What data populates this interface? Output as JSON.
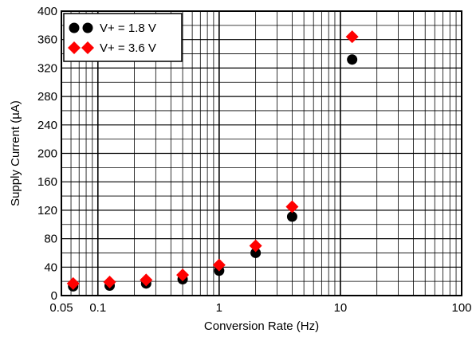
{
  "chart_data": {
    "type": "scatter",
    "title": "",
    "xlabel": "Conversion Rate (Hz)",
    "ylabel": "Supply Current (µA)",
    "xscale": "log",
    "xlim": [
      0.05,
      100
    ],
    "ylim": [
      0,
      400
    ],
    "x_ticks": [
      {
        "value": 0.05,
        "label": "0.05"
      },
      {
        "value": 0.1,
        "label": "0.1"
      },
      {
        "value": 1,
        "label": "1"
      },
      {
        "value": 10,
        "label": "10"
      },
      {
        "value": 100,
        "label": "100"
      }
    ],
    "y_ticks": [
      0,
      40,
      80,
      120,
      160,
      200,
      240,
      280,
      320,
      360,
      400
    ],
    "y_tick_labels": [
      "0",
      "40",
      "80",
      "120",
      "160",
      "200",
      "240",
      "280",
      "320",
      "360",
      "400"
    ],
    "grid": true,
    "legend_position": "top-left",
    "series": [
      {
        "name": "V+ = 1.8 V",
        "marker": "circle",
        "color": "#000000",
        "x": [
          0.0625,
          0.125,
          0.25,
          0.5,
          1,
          2,
          4,
          12.5
        ],
        "y": [
          13,
          14,
          17,
          23,
          35,
          60,
          111,
          332
        ]
      },
      {
        "name": "V+ = 3.6 V",
        "marker": "diamond",
        "color": "#ff0000",
        "x": [
          0.0625,
          0.125,
          0.25,
          0.5,
          1,
          2,
          4,
          12.5
        ],
        "y": [
          17,
          19,
          22,
          29,
          43,
          70,
          125,
          364
        ]
      }
    ]
  }
}
